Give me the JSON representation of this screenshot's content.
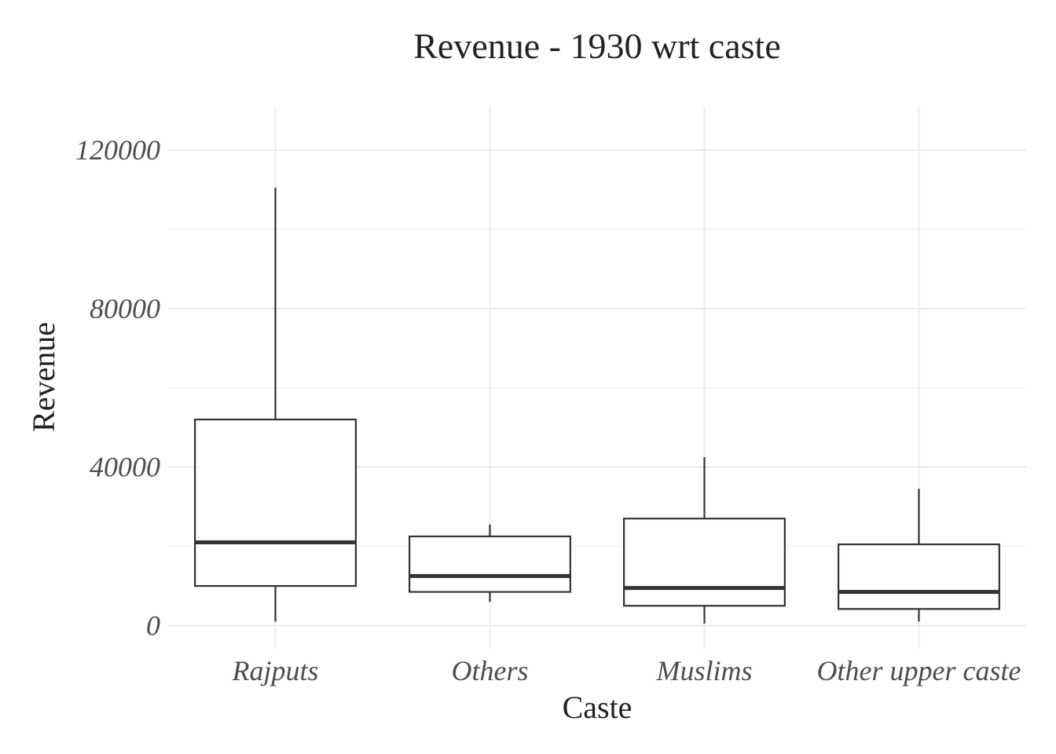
{
  "chart_data": {
    "type": "boxplot",
    "title": "Revenue - 1930 wrt caste",
    "xlabel": "Caste",
    "ylabel": "Revenue",
    "ylim": [
      -4000,
      130000
    ],
    "yticks": [
      0,
      40000,
      80000,
      120000
    ],
    "ytick_labels": [
      "0",
      "40000",
      "80000",
      "120000"
    ],
    "categories": [
      "Rajputs",
      "Others",
      "Muslims",
      "Other upper caste"
    ],
    "boxes": [
      {
        "category": "Rajputs",
        "whisker_low": 1000,
        "q1": 10000,
        "median": 21000,
        "q3": 52000,
        "whisker_high": 110500
      },
      {
        "category": "Others",
        "whisker_low": 6000,
        "q1": 8500,
        "median": 12500,
        "q3": 22500,
        "whisker_high": 25500
      },
      {
        "category": "Muslims",
        "whisker_low": 500,
        "q1": 5000,
        "median": 9500,
        "q3": 27000,
        "whisker_high": 42500
      },
      {
        "category": "Other upper caste",
        "whisker_low": 1000,
        "q1": 4200,
        "median": 8500,
        "q3": 20500,
        "whisker_high": 34500
      }
    ],
    "grid": true,
    "legend": "none"
  }
}
